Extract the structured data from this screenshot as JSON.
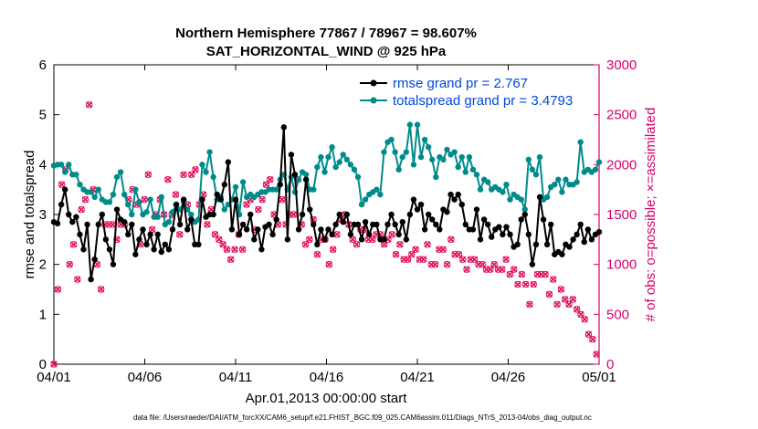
{
  "chart_data": {
    "type": "line",
    "title": "Northern Hemisphere 77867 / 78967 = 98.607%",
    "subtitle": "SAT_HORIZONTAL_WIND @ 925 hPa",
    "xlabel": "Apr.01,2013 00:00:00 start",
    "ylabel_left": "rmse and totalspread",
    "ylabel_right": "# of obs: o=possible; ×=assimilated",
    "x_ticks": [
      "04/01",
      "04/06",
      "04/11",
      "04/16",
      "04/21",
      "04/26",
      "05/01"
    ],
    "xlim": [
      0,
      30
    ],
    "ylim_left": [
      0,
      6
    ],
    "y_ticks_left": [
      "0",
      "1",
      "2",
      "3",
      "4",
      "5",
      "6"
    ],
    "ylim_right": [
      0,
      3000
    ],
    "y_ticks_right": [
      "0",
      "500",
      "1000",
      "1500",
      "2000",
      "2500",
      "3000"
    ],
    "footnote": "data file: /Users/raeder/DAI/ATM_forcXX/CAM6_setup/f.e21.FHIST_BGC.f09_025.CAM6assim.011/Diags_NTrS_2013-04/obs_diag_output.nc",
    "legend_location": "top-right",
    "colors": {
      "rmse": "#000000",
      "spread": "#008b8b",
      "obs": "#e0115f",
      "right_axis": "#d6006a"
    },
    "series": [
      {
        "name": "rmse grand pr = 2.767",
        "axis": "left",
        "values": [
          2.85,
          2.82,
          3.2,
          3.5,
          3.0,
          2.85,
          2.95,
          2.6,
          2.3,
          2.8,
          1.7,
          2.1,
          2.8,
          3.0,
          2.5,
          2.3,
          2.0,
          3.1,
          2.9,
          2.85,
          2.6,
          2.8,
          2.2,
          2.5,
          2.7,
          2.4,
          2.6,
          2.3,
          2.6,
          2.25,
          2.4,
          2.3,
          2.7,
          3.2,
          2.8,
          3.3,
          2.7,
          2.9,
          2.4,
          2.4,
          3.3,
          2.95,
          3.0,
          3.0,
          3.4,
          3.3,
          3.6,
          4.05,
          2.7,
          3.3,
          2.6,
          2.8,
          2.7,
          3.0,
          2.5,
          2.7,
          2.3,
          2.75,
          2.8,
          2.6,
          2.9,
          3.6,
          4.75,
          2.5,
          4.2,
          3.8,
          2.7,
          3.0,
          3.7,
          3.1,
          2.8,
          2.4,
          2.7,
          2.5,
          2.7,
          2.6,
          2.8,
          3.0,
          2.85,
          3.0,
          2.6,
          2.8,
          2.8,
          2.5,
          2.85,
          2.6,
          2.8,
          2.8,
          2.5,
          2.5,
          2.8,
          3.0,
          2.8,
          2.6,
          2.85,
          2.5,
          3.0,
          3.3,
          3.1,
          3.2,
          2.7,
          3.0,
          2.9,
          2.8,
          2.7,
          3.1,
          3.05,
          3.4,
          3.3,
          3.4,
          3.2,
          2.8,
          2.7,
          2.7,
          3.1,
          2.5,
          2.9,
          2.8,
          2.55,
          2.7,
          2.75,
          2.6,
          2.75,
          2.6,
          2.35,
          2.4,
          2.9,
          3.0,
          2.6,
          2.0,
          2.4,
          3.35,
          2.9,
          2.4,
          2.8,
          2.2,
          2.25,
          2.2,
          2.4,
          2.35,
          2.5,
          2.6,
          2.8,
          2.45,
          2.7,
          2.5,
          2.6,
          2.65
        ]
      },
      {
        "name": "totalspread grand pr = 3.4793",
        "axis": "left",
        "values": [
          3.98,
          4.0,
          4.0,
          3.85,
          4.0,
          3.8,
          3.8,
          3.6,
          3.5,
          3.45,
          3.45,
          3.35,
          3.5,
          3.3,
          3.25,
          3.25,
          3.4,
          3.75,
          3.85,
          3.4,
          3.2,
          3.0,
          3.5,
          3.25,
          3.0,
          3.05,
          3.3,
          2.95,
          2.95,
          3.35,
          2.8,
          2.85,
          3.05,
          3.2,
          3.1,
          3.25,
          3.1,
          3.0,
          2.85,
          2.9,
          4.0,
          3.85,
          4.25,
          3.75,
          3.3,
          3.35,
          3.1,
          3.2,
          3.3,
          3.55,
          3.0,
          3.65,
          3.35,
          3.4,
          3.35,
          3.4,
          3.45,
          3.45,
          3.5,
          3.5,
          3.5,
          3.7,
          3.8,
          3.5,
          3.75,
          3.45,
          3.7,
          3.85,
          3.8,
          3.5,
          3.5,
          3.95,
          4.15,
          3.85,
          4.15,
          4.35,
          3.95,
          4.05,
          4.2,
          4.1,
          4.0,
          3.9,
          3.75,
          3.2,
          3.3,
          3.4,
          3.45,
          3.5,
          3.4,
          4.25,
          4.45,
          4.5,
          4.25,
          3.9,
          4.15,
          4.25,
          4.8,
          4.0,
          4.8,
          4.15,
          4.5,
          4.35,
          4.1,
          3.75,
          4.15,
          4.1,
          4.3,
          4.2,
          4.25,
          3.95,
          4.15,
          3.85,
          4.15,
          3.9,
          3.8,
          3.5,
          3.7,
          3.65,
          3.5,
          3.55,
          3.5,
          3.45,
          3.6,
          3.3,
          3.4,
          3.35,
          3.3,
          3.1,
          4.1,
          3.9,
          3.8,
          4.15,
          3.3,
          3.35,
          3.55,
          3.6,
          3.7,
          3.45,
          3.7,
          3.6,
          3.6,
          3.65,
          4.45,
          3.85,
          3.9,
          3.85,
          3.9,
          4.05
        ]
      },
      {
        "name": "# possible obs (o)",
        "axis": "right",
        "values": [
          0,
          900,
          550,
          750,
          1150,
          2050,
          1800,
          1500,
          2250,
          1950,
          1400,
          1100,
          1000,
          1700,
          1250,
          1200,
          1800,
          1550,
          850,
          750,
          1000,
          1550,
          1450,
          1400,
          1650,
          2100,
          2000,
          2600,
          1200,
          1650,
          1750,
          2200,
          1800,
          1000,
          1200,
          1300,
          750,
          1250,
          1400,
          1400,
          1300,
          1600,
          1400,
          1300,
          1500,
          1400,
          1700,
          1050,
          1250,
          1200,
          1300,
          1400,
          1500,
          1350,
          1400,
          1600,
          1100,
          1650,
          1350,
          1700,
          1750,
          1700,
          1500,
          1600,
          1550,
          1300,
          1200,
          1750,
          1800,
          1650,
          1700,
          1800,
          1900,
          1950,
          1550,
          1350,
          1250,
          1600,
          1500,
          1400,
          1750,
          1650,
          1700,
          1600,
          1500,
          1400,
          1700,
          1850,
          1550,
          1550,
          1500,
          1400,
          1300,
          1700,
          1600,
          1350,
          1300,
          1700,
          1750,
          1900,
          1800,
          1450,
          1600,
          1550,
          1550,
          1900,
          1850,
          1800,
          1950,
          1700,
          1700,
          1600,
          1700,
          1650,
          1700,
          1500,
          1350,
          1400,
          1500,
          1650,
          1550,
          1350,
          1600,
          1300,
          1200,
          1400,
          1250,
          1150,
          1150,
          1200,
          1350,
          1000,
          1150,
          1050,
          1050,
          1050,
          1000,
          1100,
          1150,
          1000,
          1050,
          1300,
          1250,
          1100,
          1150,
          1200,
          1300,
          1600,
          1800,
          1500,
          1650,
          1800,
          1550,
          1350,
          1450,
          1300,
          1550,
          1800,
          1700,
          1650,
          1900,
          1800,
          1800,
          2000,
          1900,
          1850,
          1700,
          1800,
          1500,
          1600,
          1400,
          1400,
          1500,
          1550,
          1650,
          1300,
          1350,
          1400,
          1300,
          1450,
          1500,
          1400,
          1600,
          1500,
          1650,
          1550,
          1850,
          1700,
          1500,
          1400,
          1450,
          1350,
          1200,
          1300,
          1350,
          1250,
          1200,
          1300,
          1450,
          1350,
          1250,
          1100,
          1300,
          1400,
          1250,
          1400,
          1300,
          1250,
          1250,
          1100,
          1000,
          1200,
          1300,
          1150,
          1350,
          1450,
          1300,
          1450,
          1550,
          1450,
          1550,
          1400,
          1500,
          1350,
          1250,
          1400,
          1500,
          1200,
          1250,
          1250,
          1450,
          1200,
          1300,
          1400,
          1350,
          1250,
          1300,
          1350,
          1250,
          1400,
          1250,
          1300,
          1300,
          1250,
          1300,
          1350,
          1300,
          1300,
          1300,
          1300,
          1250,
          1150,
          1200,
          1150,
          1200,
          1250,
          1200,
          1250,
          1300,
          1350,
          1250,
          1100,
          1050,
          1100,
          1200,
          1300,
          1250,
          1050,
          1100,
          1050,
          1050,
          1200,
          1250,
          1100,
          1000,
          1100,
          1150,
          1200,
          1250,
          1050,
          1000,
          1000,
          1050,
          1100,
          1150,
          1200,
          1100,
          1050,
          1000,
          1050,
          1100,
          1000,
          1050,
          1100,
          1150,
          1050,
          1100,
          1150,
          1200,
          1100,
          1000,
          1150,
          1200,
          1250,
          1300,
          1150,
          1100,
          1200,
          1250,
          1100,
          1000,
          950,
          1050,
          1100,
          1000,
          950,
          1000,
          1100,
          1050,
          950,
          1000,
          1050,
          1000,
          950,
          1000,
          1050,
          1100,
          1000,
          950,
          900,
          950,
          1000,
          1050,
          950,
          900,
          950,
          1000,
          1050,
          1000,
          950,
          900,
          1000,
          950,
          1000,
          1100,
          1050,
          1000,
          950,
          900,
          950,
          1000,
          950,
          900,
          850,
          800,
          750,
          700,
          900,
          950,
          850,
          800,
          700,
          650,
          600,
          500,
          650,
          800,
          900,
          950,
          900,
          850,
          800,
          900,
          1050,
          950,
          900,
          850,
          800,
          700,
          750,
          800,
          850,
          750,
          650,
          600,
          700,
          800,
          750,
          650,
          600,
          650,
          700,
          650,
          600,
          550,
          600,
          650,
          700,
          600,
          550,
          500,
          450,
          500,
          550,
          500,
          450,
          400,
          350,
          300,
          350,
          300,
          250,
          200,
          150,
          100,
          50,
          0
        ]
      }
    ]
  }
}
